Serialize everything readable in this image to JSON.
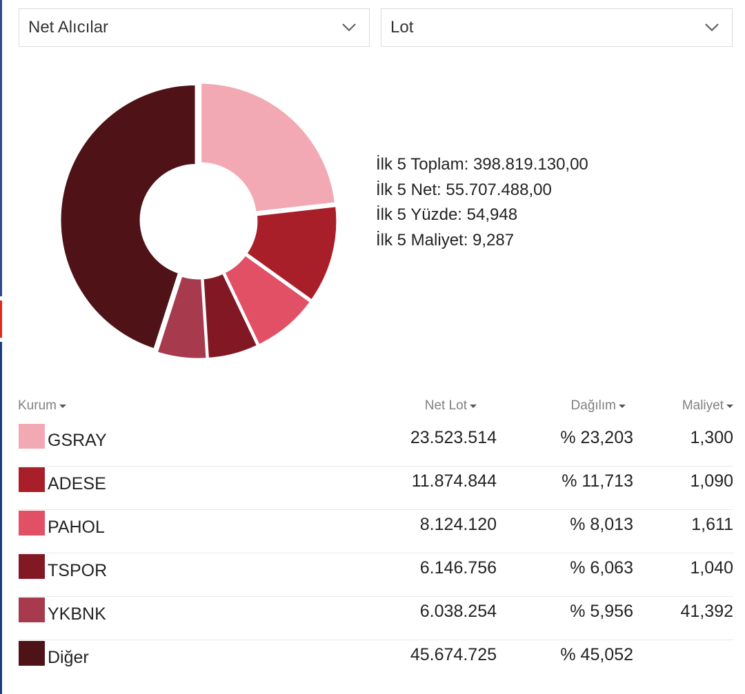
{
  "filters": {
    "type_select": "Net Alıcılar",
    "unit_select": "Lot"
  },
  "summary": {
    "total": "İlk 5 Toplam: 398.819.130,00",
    "net": "İlk 5 Net: 55.707.488,00",
    "percent": "İlk 5 Yüzde: 54,948",
    "cost": "İlk 5 Maliyet: 9,287"
  },
  "table": {
    "headers": {
      "kurum": "Kurum",
      "net_lot": "Net Lot",
      "dagilim": "Dağılım",
      "maliyet": "Maliyet"
    },
    "rows": [
      {
        "name": "GSRAY",
        "net_lot": "23.523.514",
        "dagilim": "% 23,203",
        "maliyet": "1,300",
        "color": "#f2a9b3"
      },
      {
        "name": "ADESE",
        "net_lot": "11.874.844",
        "dagilim": "% 11,713",
        "maliyet": "1,090",
        "color": "#a81f29"
      },
      {
        "name": "PAHOL",
        "net_lot": "8.124.120",
        "dagilim": "% 8,013",
        "maliyet": "1,611",
        "color": "#e15064"
      },
      {
        "name": "TSPOR",
        "net_lot": "6.146.756",
        "dagilim": "% 6,063",
        "maliyet": "1,040",
        "color": "#821824"
      },
      {
        "name": "YKBNK",
        "net_lot": "6.038.254",
        "dagilim": "% 5,956",
        "maliyet": "41,392",
        "color": "#a73a4c"
      },
      {
        "name": "Diğer",
        "net_lot": "45.674.725",
        "dagilim": "% 45,052",
        "maliyet": "",
        "color": "#4f1216"
      }
    ]
  },
  "chart_data": {
    "type": "pie",
    "categories": [
      "GSRAY",
      "ADESE",
      "PAHOL",
      "TSPOR",
      "YKBNK",
      "Diğer"
    ],
    "values": [
      23.203,
      11.713,
      8.013,
      6.063,
      5.956,
      45.052
    ],
    "colors": [
      "#f2a9b3",
      "#a81f29",
      "#e15064",
      "#821824",
      "#a73a4c",
      "#4f1216"
    ],
    "style": "donut"
  },
  "page_edge_colors": [
    "#2c4a8c",
    "#d92b1e",
    "#1c3d80"
  ]
}
